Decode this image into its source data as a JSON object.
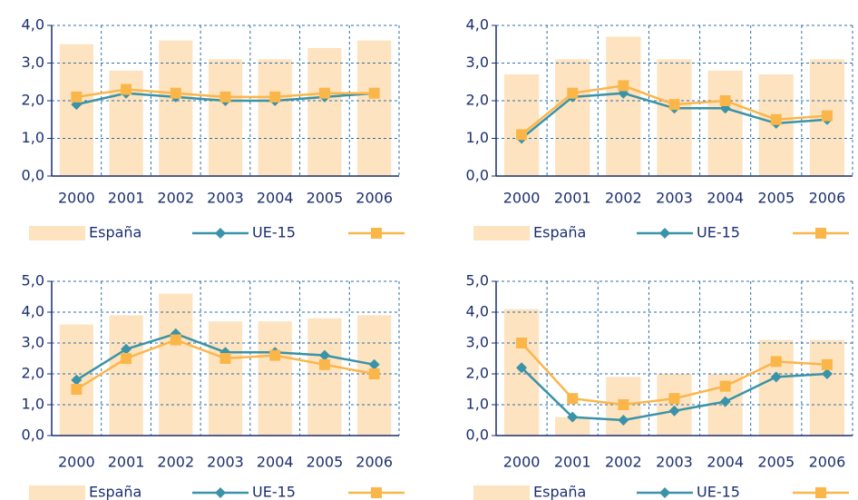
{
  "chart_data": [
    {
      "type": "bar-line",
      "categories": [
        "2000",
        "2001",
        "2002",
        "2003",
        "2004",
        "2005",
        "2006"
      ],
      "ylim": [
        0,
        4
      ],
      "yticks": [
        {
          "value": 0,
          "label": "0,0"
        },
        {
          "value": 1,
          "label": "1,0"
        },
        {
          "value": 2,
          "label": "2,0"
        },
        {
          "value": 3,
          "label": "3,0"
        },
        {
          "value": 4,
          "label": "4,0"
        }
      ],
      "grid": true,
      "series": [
        {
          "name": "España",
          "type": "bar",
          "color": "#fde3c0",
          "values": [
            3.5,
            2.8,
            3.6,
            3.1,
            3.1,
            3.4,
            3.6
          ]
        },
        {
          "name": "UE-15",
          "type": "line",
          "marker": "diamond",
          "color": "#3a93a8",
          "values": [
            1.9,
            2.2,
            2.1,
            2.0,
            2.0,
            2.1,
            2.2
          ]
        },
        {
          "type": "line",
          "marker": "square",
          "color": "#fbb64a",
          "values": [
            2.1,
            2.3,
            2.2,
            2.1,
            2.1,
            2.2,
            2.2
          ]
        }
      ]
    },
    {
      "type": "bar-line",
      "categories": [
        "2000",
        "2001",
        "2002",
        "2003",
        "2004",
        "2005",
        "2006"
      ],
      "ylim": [
        0,
        4
      ],
      "yticks": [
        {
          "value": 0,
          "label": "0,0"
        },
        {
          "value": 1,
          "label": "1,0"
        },
        {
          "value": 2,
          "label": "2,0"
        },
        {
          "value": 3,
          "label": "3,0"
        },
        {
          "value": 4,
          "label": "4,0"
        }
      ],
      "grid": true,
      "series": [
        {
          "name": "España",
          "type": "bar",
          "color": "#fde3c0",
          "values": [
            2.7,
            3.1,
            3.7,
            3.1,
            2.8,
            2.7,
            3.1
          ]
        },
        {
          "name": "UE-15",
          "type": "line",
          "marker": "diamond",
          "color": "#3a93a8",
          "values": [
            1.0,
            2.1,
            2.2,
            1.8,
            1.8,
            1.4,
            1.5
          ]
        },
        {
          "type": "line",
          "marker": "square",
          "color": "#fbb64a",
          "values": [
            1.1,
            2.2,
            2.4,
            1.9,
            2.0,
            1.5,
            1.6
          ]
        }
      ]
    },
    {
      "type": "bar-line",
      "categories": [
        "2000",
        "2001",
        "2002",
        "2003",
        "2004",
        "2005",
        "2006"
      ],
      "ylim": [
        0,
        5
      ],
      "yticks": [
        {
          "value": 0,
          "label": "0,0"
        },
        {
          "value": 1,
          "label": "1,0"
        },
        {
          "value": 2,
          "label": "2,0"
        },
        {
          "value": 3,
          "label": "3,0"
        },
        {
          "value": 4,
          "label": "4,0"
        },
        {
          "value": 5,
          "label": "5,0"
        }
      ],
      "grid": true,
      "series": [
        {
          "name": "España",
          "type": "bar",
          "color": "#fde3c0",
          "values": [
            3.6,
            3.9,
            4.6,
            3.7,
            3.7,
            3.8,
            3.9
          ]
        },
        {
          "name": "UE-15",
          "type": "line",
          "marker": "diamond",
          "color": "#3a93a8",
          "values": [
            1.8,
            2.8,
            3.3,
            2.7,
            2.7,
            2.6,
            2.3
          ]
        },
        {
          "type": "line",
          "marker": "square",
          "color": "#fbb64a",
          "values": [
            1.5,
            2.5,
            3.1,
            2.5,
            2.6,
            2.3,
            2.0
          ]
        }
      ]
    },
    {
      "type": "bar-line",
      "categories": [
        "2000",
        "2001",
        "2002",
        "2003",
        "2004",
        "2005",
        "2006"
      ],
      "ylim": [
        0,
        5
      ],
      "yticks": [
        {
          "value": 0,
          "label": "0,0"
        },
        {
          "value": 1,
          "label": "1,0"
        },
        {
          "value": 2,
          "label": "2,0"
        },
        {
          "value": 3,
          "label": "3,0"
        },
        {
          "value": 4,
          "label": "4,0"
        },
        {
          "value": 5,
          "label": "5,0"
        }
      ],
      "grid": true,
      "series": [
        {
          "name": "España",
          "type": "bar",
          "color": "#fde3c0",
          "values": [
            4.1,
            0.6,
            1.9,
            2.0,
            2.0,
            3.1,
            3.1
          ]
        },
        {
          "name": "UE-15",
          "type": "line",
          "marker": "diamond",
          "color": "#3a93a8",
          "values": [
            2.2,
            0.6,
            0.5,
            0.8,
            1.1,
            1.9,
            2.0
          ]
        },
        {
          "type": "line",
          "marker": "square",
          "color": "#fbb64a",
          "values": [
            3.0,
            1.2,
            1.0,
            1.2,
            1.6,
            2.4,
            2.3
          ]
        }
      ]
    }
  ]
}
